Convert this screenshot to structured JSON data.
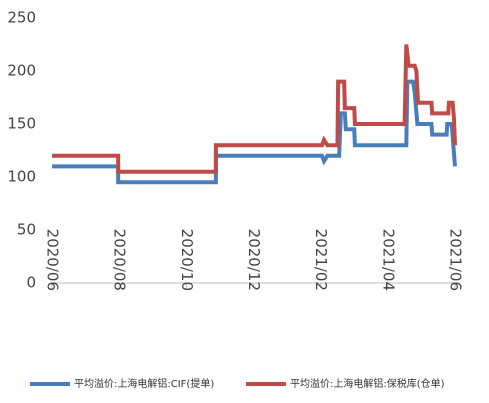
{
  "chart_data": {
    "type": "line",
    "ylim": [
      0,
      250
    ],
    "yticks": [
      0,
      50,
      100,
      150,
      200,
      250
    ],
    "xlim": [
      0,
      12
    ],
    "xticks": [
      {
        "value": 0,
        "label": "2020/06"
      },
      {
        "value": 2,
        "label": "2020/08"
      },
      {
        "value": 4,
        "label": "2020/10"
      },
      {
        "value": 6,
        "label": "2020/12"
      },
      {
        "value": 8,
        "label": "2021/02"
      },
      {
        "value": 10,
        "label": "2021/04"
      },
      {
        "value": 12,
        "label": "2021/06"
      }
    ],
    "grid": false,
    "legend": "bottom",
    "series": [
      {
        "name": "平均溢价:上海电解铝:CIF(提单)",
        "color": "#4a7ebb",
        "x": [
          0,
          1.97,
          1.97,
          4.88,
          4.88,
          8.04,
          8.1,
          8.2,
          8.55,
          8.6,
          8.72,
          8.75,
          9.0,
          9.02,
          10.55,
          10.58,
          10.75,
          10.8,
          10.88,
          11.3,
          11.32,
          11.75,
          11.77,
          11.9,
          12.0
        ],
        "values": [
          110,
          110,
          95,
          95,
          120,
          120,
          115,
          120,
          120,
          160,
          160,
          145,
          145,
          130,
          130,
          190,
          190,
          180,
          150,
          150,
          140,
          140,
          150,
          150,
          110
        ]
      },
      {
        "name": "平均溢价:上海电解铝:保税库(仓单)",
        "color": "#be4b48",
        "x": [
          0,
          1.97,
          1.97,
          4.88,
          4.88,
          8.04,
          8.1,
          8.2,
          8.5,
          8.52,
          8.7,
          8.72,
          9.0,
          9.02,
          10.5,
          10.55,
          10.62,
          10.8,
          10.85,
          10.9,
          11.3,
          11.32,
          11.8,
          11.82,
          11.93,
          11.97,
          12.0
        ],
        "values": [
          120,
          120,
          105,
          105,
          130,
          130,
          135,
          130,
          130,
          190,
          190,
          165,
          165,
          150,
          150,
          225,
          205,
          205,
          200,
          170,
          170,
          160,
          160,
          170,
          170,
          155,
          130
        ]
      }
    ]
  }
}
